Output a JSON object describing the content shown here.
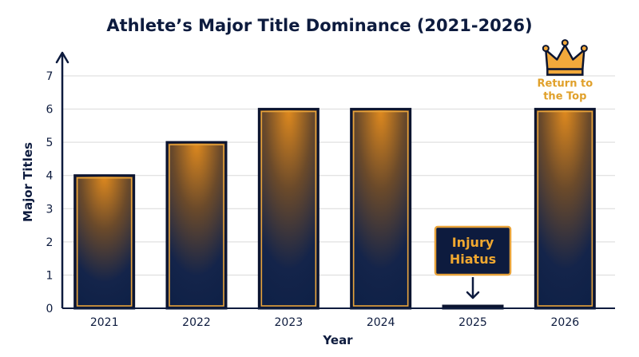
{
  "chart_data": {
    "type": "bar",
    "title": "Athlete’s Major Title Dominance (2021-2026)",
    "xlabel": "Year",
    "ylabel": "Major Titles",
    "categories": [
      "2021",
      "2022",
      "2023",
      "2024",
      "2025",
      "2026"
    ],
    "values": [
      4,
      5,
      6,
      6,
      0,
      6
    ],
    "ylim": [
      0,
      7
    ],
    "yticks": [
      0,
      1,
      2,
      3,
      4,
      5,
      6,
      7
    ],
    "grid": true,
    "annotations": [
      {
        "category": "2025",
        "text_lines": [
          "Injury",
          "Hiatus"
        ],
        "style": "callout-box-with-arrow"
      },
      {
        "category": "2026",
        "text_lines": [
          "Return to",
          "the Top"
        ],
        "icon": "crown-icon"
      }
    ]
  },
  "colors": {
    "navy": "#0d1b3e",
    "gold": "#e8a33a",
    "gold_glow": "#e08a1e",
    "bar_bottom": "#0c1f45",
    "grid": "#d9d9d9"
  }
}
